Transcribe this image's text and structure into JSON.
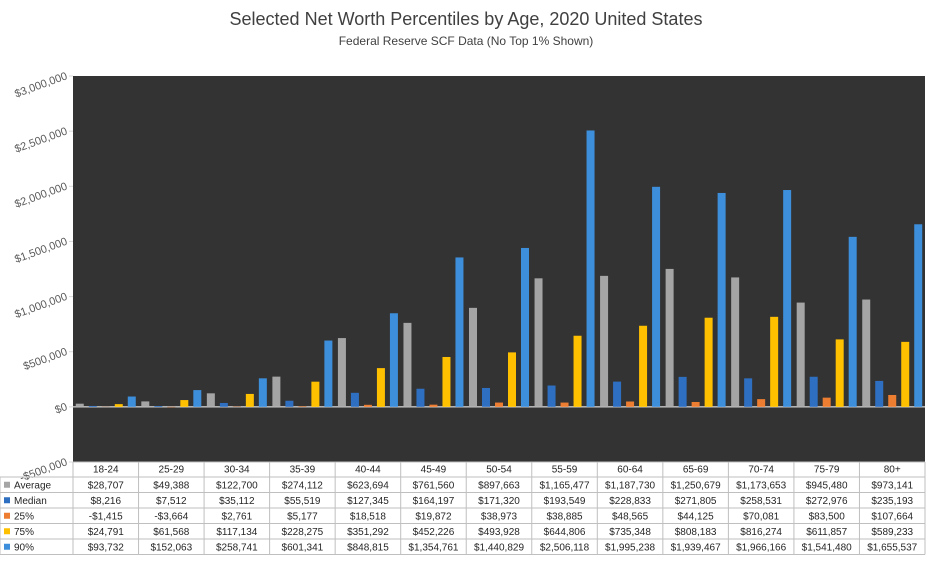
{
  "chart_data": {
    "type": "bar",
    "title": "Selected Net Worth Percentiles by Age, 2020 United States",
    "subtitle": "Federal Reserve SCF Data (No Top 1% Shown)",
    "categories": [
      "18-24",
      "25-29",
      "30-34",
      "35-39",
      "40-44",
      "45-49",
      "50-54",
      "55-59",
      "60-64",
      "65-69",
      "70-74",
      "75-79",
      "80+"
    ],
    "ylim": [
      -500000,
      3000000
    ],
    "yticks": [
      {
        "value": -500000,
        "label": "-$500,000"
      },
      {
        "value": 0,
        "label": "$0"
      },
      {
        "value": 500000,
        "label": "$500,000"
      },
      {
        "value": 1000000,
        "label": "$1,000,000"
      },
      {
        "value": 1500000,
        "label": "$1,500,000"
      },
      {
        "value": 2000000,
        "label": "$2,000,000"
      },
      {
        "value": 2500000,
        "label": "$2,500,000"
      },
      {
        "value": 3000000,
        "label": "$3,000,000"
      }
    ],
    "grid": false,
    "series": [
      {
        "name": "Average",
        "color": "#a5a5a5",
        "values": [
          28707,
          49388,
          122700,
          274112,
          623694,
          761560,
          897663,
          1165477,
          1187730,
          1250679,
          1173653,
          945480,
          973141
        ],
        "value_labels": [
          "$28,707",
          "$49,388",
          "$122,700",
          "$274,112",
          "$623,694",
          "$761,560",
          "$897,663",
          "$1,165,477",
          "$1,187,730",
          "$1,250,679",
          "$1,173,653",
          "$945,480",
          "$973,141"
        ]
      },
      {
        "name": "Median",
        "color": "#2f6fc1",
        "values": [
          8216,
          7512,
          35112,
          55519,
          127345,
          164197,
          171320,
          193549,
          228833,
          271805,
          258531,
          272976,
          235193
        ],
        "value_labels": [
          "$8,216",
          "$7,512",
          "$35,112",
          "$55,519",
          "$127,345",
          "$164,197",
          "$171,320",
          "$193,549",
          "$228,833",
          "$271,805",
          "$258,531",
          "$272,976",
          "$235,193"
        ]
      },
      {
        "name": "25%",
        "color": "#ed7d31",
        "values": [
          -1415,
          -3664,
          2761,
          5177,
          18518,
          19872,
          38973,
          38885,
          48565,
          44125,
          70081,
          83500,
          107664
        ],
        "value_labels": [
          "-$1,415",
          "-$3,664",
          "$2,761",
          "$5,177",
          "$18,518",
          "$19,872",
          "$38,973",
          "$38,885",
          "$48,565",
          "$44,125",
          "$70,081",
          "$83,500",
          "$107,664"
        ]
      },
      {
        "name": "75%",
        "color": "#ffc000",
        "values": [
          24791,
          61568,
          117134,
          228275,
          351292,
          452226,
          493928,
          644806,
          735348,
          808183,
          816274,
          611857,
          589233
        ],
        "value_labels": [
          "$24,791",
          "$61,568",
          "$117,134",
          "$228,275",
          "$351,292",
          "$452,226",
          "$493,928",
          "$644,806",
          "$735,348",
          "$808,183",
          "$816,274",
          "$611,857",
          "$589,233"
        ]
      },
      {
        "name": "90%",
        "color": "#3d8fdb",
        "values": [
          93732,
          152063,
          258741,
          601341,
          848815,
          1354761,
          1440829,
          2506118,
          1995238,
          1939467,
          1966166,
          1541480,
          1655537
        ],
        "value_labels": [
          "$93,732",
          "$152,063",
          "$258,741",
          "$601,341",
          "$848,815",
          "$1,354,761",
          "$1,440,829",
          "$2,506,118",
          "$1,995,238",
          "$1,939,467",
          "$1,966,166",
          "$1,541,480",
          "$1,655,537"
        ]
      }
    ]
  }
}
